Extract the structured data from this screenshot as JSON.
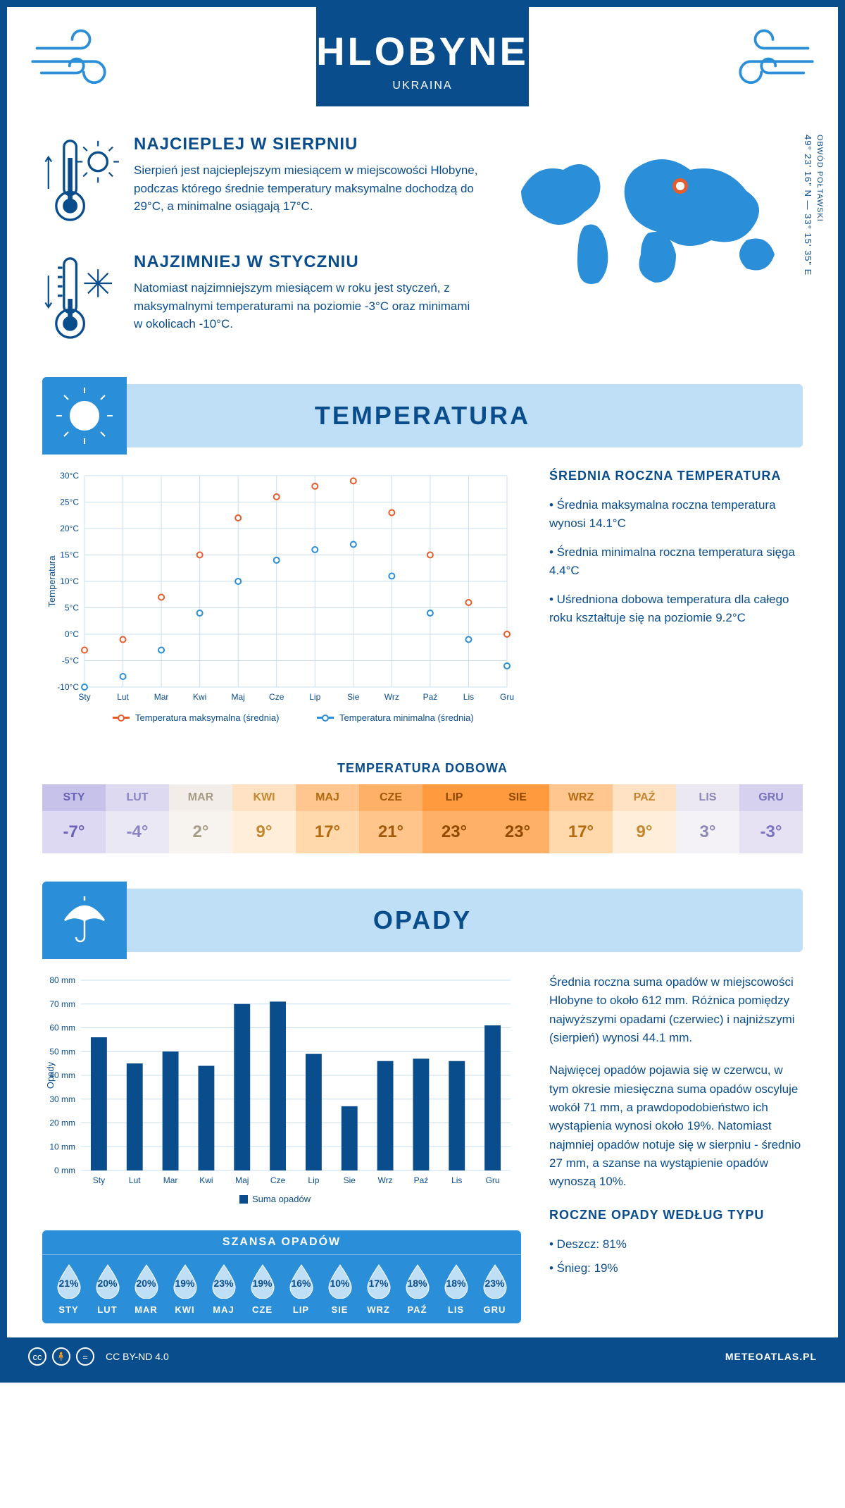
{
  "header": {
    "title": "HLOBYNE",
    "country": "UKRAINA"
  },
  "intro": {
    "warm": {
      "title": "NAJCIEPLEJ W SIERPNIU",
      "text": "Sierpień jest najcieplejszym miesiącem w miejscowości Hlobyne, podczas którego średnie temperatury maksymalne dochodzą do 29°C, a minimalne osiągają 17°C."
    },
    "cold": {
      "title": "NAJZIMNIEJ W STYCZNIU",
      "text": "Natomiast najzimniejszym miesiącem w roku jest styczeń, z maksymalnymi temperaturami na poziomie -3°C oraz minimami w okolicach -10°C."
    },
    "coords": "49° 23' 16\" N — 33° 15' 35\" E",
    "region": "OBWÓD POŁTAWSKI",
    "marker_pos": {
      "left_pct": 56,
      "top_pct": 28
    }
  },
  "temperature": {
    "banner": "TEMPERATURA",
    "chart": {
      "type": "line",
      "months": [
        "Sty",
        "Lut",
        "Mar",
        "Kwi",
        "Maj",
        "Cze",
        "Lip",
        "Sie",
        "Wrz",
        "Paź",
        "Lis",
        "Gru"
      ],
      "max_series": [
        -3,
        -1,
        7,
        15,
        22,
        26,
        28,
        29,
        23,
        15,
        6,
        0
      ],
      "min_series": [
        -10,
        -8,
        -3,
        4,
        10,
        14,
        16,
        17,
        11,
        4,
        -1,
        -6
      ],
      "colors": {
        "max": "#e85c2c",
        "min": "#2a8ed8"
      },
      "ylim": [
        -10,
        30
      ],
      "ytick_step": 5,
      "y_label": "Temperatura",
      "y_unit": "°C",
      "grid_color": "#c9dff0",
      "background": "#ffffff",
      "line_width": 2,
      "marker_radius": 4,
      "legend": {
        "max": "Temperatura maksymalna (średnia)",
        "min": "Temperatura minimalna (średnia)"
      }
    },
    "info": {
      "title": "ŚREDNIA ROCZNA TEMPERATURA",
      "bullets": [
        "Średnia maksymalna roczna temperatura wynosi 14.1°C",
        "Średnia minimalna roczna temperatura sięga 4.4°C",
        "Uśredniona dobowa temperatura dla całego roku kształtuje się na poziomie 9.2°C"
      ]
    },
    "daily": {
      "title": "TEMPERATURA DOBOWA",
      "months": [
        "STY",
        "LUT",
        "MAR",
        "KWI",
        "MAJ",
        "CZE",
        "LIP",
        "SIE",
        "WRZ",
        "PAŹ",
        "LIS",
        "GRU"
      ],
      "values": [
        "-7°",
        "-4°",
        "2°",
        "9°",
        "17°",
        "21°",
        "23°",
        "23°",
        "17°",
        "9°",
        "3°",
        "-3°"
      ],
      "header_bg": [
        "#c7c2ea",
        "#dcd9f0",
        "#f2ede8",
        "#ffe2c4",
        "#ffc78f",
        "#ffb067",
        "#ff9a3e",
        "#ff9a3e",
        "#ffc78f",
        "#ffe2c4",
        "#ece8f2",
        "#d5d1ee"
      ],
      "value_bg": [
        "#ddd9f2",
        "#ebe8f6",
        "#f7f4f0",
        "#ffeed9",
        "#ffd9ac",
        "#ffc58a",
        "#ffb067",
        "#ffb067",
        "#ffd9ac",
        "#ffeed9",
        "#f4f1f7",
        "#e6e2f4"
      ],
      "text_color": [
        "#6a62b5",
        "#8a84c4",
        "#a59c86",
        "#c4872f",
        "#b36a10",
        "#a15908",
        "#8f4a00",
        "#8f4a00",
        "#b36a10",
        "#c4872f",
        "#8e88b8",
        "#7a73be"
      ]
    }
  },
  "precipitation": {
    "banner": "OPADY",
    "chart": {
      "type": "bar",
      "months": [
        "Sty",
        "Lut",
        "Mar",
        "Kwi",
        "Maj",
        "Cze",
        "Lip",
        "Sie",
        "Wrz",
        "Paź",
        "Lis",
        "Gru"
      ],
      "values": [
        56,
        45,
        50,
        44,
        70,
        71,
        49,
        27,
        46,
        47,
        46,
        61
      ],
      "bar_color": "#0a4d8c",
      "ylim": [
        0,
        80
      ],
      "ytick_step": 10,
      "y_label": "Opady",
      "y_unit": " mm",
      "grid_color": "#c9dff0",
      "legend": "Suma opadów",
      "bar_width_ratio": 0.45
    },
    "text1": "Średnia roczna suma opadów w miejscowości Hlobyne to około 612 mm. Różnica pomiędzy najwyższymi opadami (czerwiec) i najniższymi (sierpień) wynosi 44.1 mm.",
    "text2": "Najwięcej opadów pojawia się w czerwcu, w tym okresie miesięczna suma opadów oscyluje wokół 71 mm, a prawdopodobieństwo ich wystąpienia wynosi około 19%. Natomiast najmniej opadów notuje się w sierpniu - średnio 27 mm, a szanse na wystąpienie opadów wynoszą 10%.",
    "by_type": {
      "title": "ROCZNE OPADY WEDŁUG TYPU",
      "items": [
        "Deszcz: 81%",
        "Śnieg: 19%"
      ]
    },
    "chance": {
      "title": "SZANSA OPADÓW",
      "months": [
        "STY",
        "LUT",
        "MAR",
        "KWI",
        "MAJ",
        "CZE",
        "LIP",
        "SIE",
        "WRZ",
        "PAŹ",
        "LIS",
        "GRU"
      ],
      "values": [
        "21%",
        "20%",
        "20%",
        "19%",
        "23%",
        "19%",
        "16%",
        "10%",
        "17%",
        "18%",
        "18%",
        "23%"
      ],
      "drop_fill": "#bedff5",
      "drop_stroke": "#ffffff"
    }
  },
  "footer": {
    "license": "CC BY-ND 4.0",
    "site": "METEOATLAS.PL"
  }
}
